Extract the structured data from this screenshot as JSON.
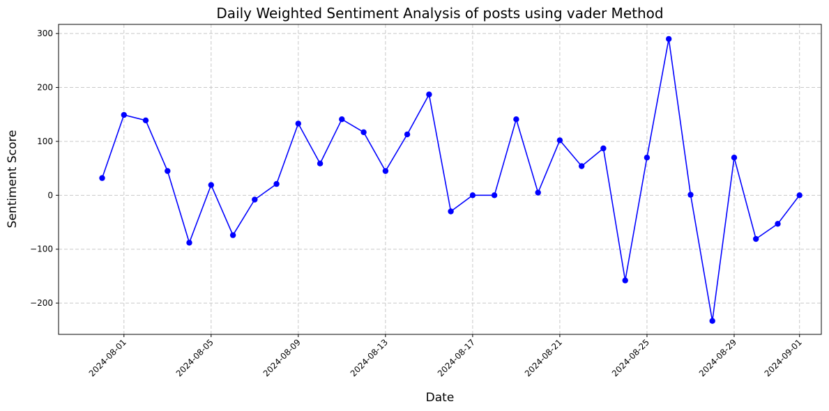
{
  "chart_data": {
    "type": "line",
    "title": "Daily Weighted Sentiment Analysis of posts using vader Method",
    "xlabel": "Date",
    "ylabel": "Sentiment Score",
    "ylim": [
      -258,
      317
    ],
    "xlim": [
      "2024-07-29",
      "2024-09-02"
    ],
    "grid": true,
    "color": "#0000ff",
    "x_ticks": [
      "2024-08-01",
      "2024-08-05",
      "2024-08-09",
      "2024-08-13",
      "2024-08-17",
      "2024-08-21",
      "2024-08-25",
      "2024-08-29",
      "2024-09-01"
    ],
    "y_ticks": [
      -200,
      -100,
      0,
      100,
      200,
      300
    ],
    "y_tick_labels": [
      "−200",
      "−100",
      "0",
      "100",
      "200",
      "300"
    ],
    "x": [
      "2024-07-31",
      "2024-08-01",
      "2024-08-02",
      "2024-08-03",
      "2024-08-04",
      "2024-08-05",
      "2024-08-06",
      "2024-08-07",
      "2024-08-08",
      "2024-08-09",
      "2024-08-10",
      "2024-08-11",
      "2024-08-12",
      "2024-08-13",
      "2024-08-14",
      "2024-08-15",
      "2024-08-16",
      "2024-08-17",
      "2024-08-18",
      "2024-08-19",
      "2024-08-20",
      "2024-08-21",
      "2024-08-22",
      "2024-08-23",
      "2024-08-24",
      "2024-08-25",
      "2024-08-26",
      "2024-08-27",
      "2024-08-28",
      "2024-08-29",
      "2024-08-30",
      "2024-08-31",
      "2024-09-01"
    ],
    "values": [
      32,
      149,
      139,
      45,
      -88,
      19,
      -74,
      -8,
      21,
      133,
      59,
      141,
      117,
      45,
      113,
      187,
      -30,
      0,
      0,
      141,
      5,
      102,
      54,
      87,
      -158,
      70,
      290,
      1,
      -233,
      70,
      -81,
      -53,
      0
    ]
  }
}
